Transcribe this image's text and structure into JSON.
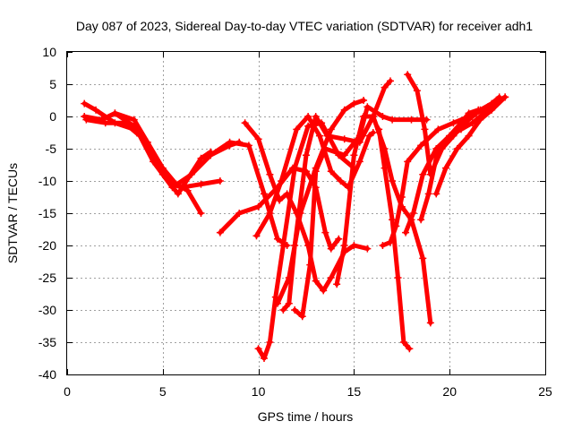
{
  "chart_data": {
    "type": "scatter",
    "title": "Day 087 of 2023, Sidereal Day-to-day VTEC variation (SDTVAR) for receiver adh1",
    "xlabel": "GPS time / hours",
    "ylabel": "SDTVAR / TECUs",
    "xlim": [
      0,
      25
    ],
    "ylim": [
      -40,
      10
    ],
    "xticks": [
      0,
      5,
      10,
      15,
      20,
      25
    ],
    "yticks": [
      10,
      5,
      0,
      -5,
      -10,
      -15,
      -20,
      -25,
      -30,
      -35,
      -40
    ],
    "grid": true,
    "marker": "plus",
    "color": "#ff0000",
    "series": [
      {
        "x": [
          0.9,
          1.5,
          2.5,
          3.5,
          4.2,
          5.0,
          5.7,
          6.3,
          7.0
        ],
        "y": [
          2.0,
          1.0,
          -1.0,
          -2.0,
          -4.0,
          -8.0,
          -10.5,
          -11.5,
          -15.0
        ]
      },
      {
        "x": [
          0.9,
          1.8,
          2.5,
          3.5,
          4.5,
          5.5,
          6.0,
          7.0,
          8.0
        ],
        "y": [
          0.0,
          -0.5,
          0.5,
          -1.5,
          -6.0,
          -10.5,
          -11.0,
          -10.5,
          -10.0
        ]
      },
      {
        "x": [
          1.0,
          2.0,
          3.0,
          3.8,
          4.5,
          5.5,
          6.5,
          7.5,
          8.5,
          9.0
        ],
        "y": [
          -0.5,
          -1.0,
          -1.0,
          -3.0,
          -7.0,
          -11.0,
          -9.0,
          -6.0,
          -4.5,
          -4.0
        ]
      },
      {
        "x": [
          2.5,
          3.5,
          4.2,
          5.0,
          5.8,
          7.0,
          7.5
        ],
        "y": [
          0.5,
          -0.5,
          -4.0,
          -9.0,
          -12.0,
          -6.5,
          -5.5
        ]
      },
      {
        "x": [
          7.5,
          8.5,
          9.5,
          10.3,
          11.0,
          11.5
        ],
        "y": [
          -6.0,
          -4.0,
          -4.5,
          -12.0,
          -19.0,
          -20.0
        ]
      },
      {
        "x": [
          8.0,
          9.0,
          10.0,
          11.0,
          11.8,
          12.5,
          13.0,
          13.5,
          13.8,
          14.2
        ],
        "y": [
          -18.0,
          -15.0,
          -14.0,
          -11.0,
          -8.0,
          -8.5,
          -11.0,
          -18.0,
          -20.5,
          -19.0
        ]
      },
      {
        "x": [
          9.3,
          10.0,
          10.6,
          11.1,
          11.5,
          12.0,
          12.6,
          13.0,
          13.4,
          13.8,
          14.5,
          15.0,
          15.7
        ],
        "y": [
          -1.0,
          -3.5,
          -9.0,
          -13.0,
          -12.0,
          -15.0,
          -20.0,
          -25.5,
          -27.0,
          -25.0,
          -21.0,
          -20.0,
          -20.5
        ]
      },
      {
        "x": [
          10.0,
          10.3,
          10.6,
          10.9,
          11.3,
          11.9,
          12.6,
          13.3,
          14.2,
          15.0
        ],
        "y": [
          -36.0,
          -37.5,
          -35.0,
          -28.0,
          -20.0,
          -8.0,
          -1.5,
          -1.0,
          -6.0,
          -8.0
        ]
      },
      {
        "x": [
          9.9,
          10.6,
          11.2,
          12.0,
          12.6,
          13.2,
          13.8,
          14.3,
          14.7,
          15.3,
          15.8,
          16.0
        ],
        "y": [
          -18.5,
          -15.0,
          -10.0,
          -2.0,
          0.0,
          -3.0,
          -8.5,
          -10.0,
          -11.0,
          -7.0,
          -3.0,
          -2.5
        ]
      },
      {
        "x": [
          11.3,
          11.6,
          11.9,
          12.5,
          13.0,
          13.6,
          14.5,
          15.3,
          16.0,
          16.6,
          16.9
        ],
        "y": [
          -30.0,
          -29.0,
          -20.0,
          -6.0,
          0.0,
          -3.0,
          -3.5,
          -4.0,
          0.0,
          4.5,
          5.5
        ]
      },
      {
        "x": [
          11.9,
          12.3,
          12.7,
          13.0,
          13.5,
          14.5,
          15.3,
          15.7,
          16.5,
          17.0,
          18.0,
          18.8
        ],
        "y": [
          -30.0,
          -31.0,
          -23.0,
          -8.5,
          -5.0,
          -6.0,
          -3.0,
          1.5,
          0.0,
          -0.5,
          -0.5,
          -0.5
        ]
      },
      {
        "x": [
          11.0,
          11.6,
          12.2,
          13.0,
          13.8,
          14.5,
          15.0,
          15.5
        ],
        "y": [
          -29.0,
          -25.0,
          -15.0,
          -8.0,
          -2.0,
          1.0,
          2.0,
          2.5
        ]
      },
      {
        "x": [
          14.1,
          14.5,
          15.0,
          15.5,
          16.0,
          16.6,
          17.0,
          17.5,
          18.0,
          18.6,
          19.0
        ],
        "y": [
          -26.0,
          -20.0,
          -6.0,
          0.0,
          0.0,
          -5.0,
          -10.0,
          -14.0,
          -16.0,
          -22.0,
          -32.0
        ]
      },
      {
        "x": [
          16.5,
          16.9,
          17.2,
          17.5,
          17.8,
          18.5,
          19.4,
          20.2,
          21.0,
          21.6,
          22.2,
          22.9
        ],
        "y": [
          -20.0,
          -19.5,
          -17.0,
          -12.5,
          -7.0,
          -4.5,
          -2.0,
          -1.0,
          0.0,
          1.0,
          2.0,
          3.0
        ]
      },
      {
        "x": [
          16.3,
          16.6,
          17.0,
          17.3,
          17.6,
          17.9
        ],
        "y": [
          -2.0,
          -8.0,
          -16.0,
          -25.0,
          -35.0,
          -36.0
        ]
      },
      {
        "x": [
          17.8,
          18.3,
          18.7,
          19.0,
          19.6,
          20.2,
          20.8,
          21.4,
          22.0,
          22.6
        ],
        "y": [
          6.5,
          4.0,
          -2.0,
          -9.0,
          -5.0,
          -3.0,
          -1.0,
          0.5,
          1.5,
          3.0
        ]
      },
      {
        "x": [
          17.7,
          18.1,
          18.6,
          19.3,
          20.0,
          20.6,
          21.0,
          21.5
        ],
        "y": [
          -18.0,
          -15.0,
          -9.0,
          -5.0,
          -3.0,
          -1.0,
          0.5,
          1.0
        ]
      },
      {
        "x": [
          18.5,
          18.9,
          19.4,
          20.0,
          20.6,
          21.2,
          21.8,
          22.5
        ],
        "y": [
          -16.0,
          -12.0,
          -5.0,
          -3.0,
          -2.0,
          -1.0,
          0.5,
          2.0
        ]
      },
      {
        "x": [
          19.3,
          19.8,
          20.4,
          21.0,
          21.6,
          22.2,
          22.9
        ],
        "y": [
          -12.0,
          -8.0,
          -5.0,
          -3.0,
          -0.5,
          1.0,
          3.0
        ]
      }
    ]
  }
}
